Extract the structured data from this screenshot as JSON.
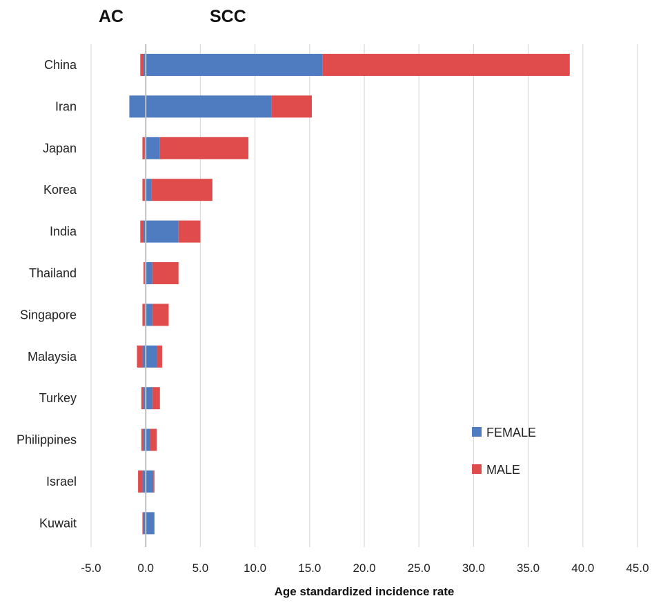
{
  "chart_data": {
    "type": "bar",
    "orientation": "horizontal",
    "stacked": true,
    "categories": [
      "China",
      "Iran",
      "Japan",
      "Korea",
      "India",
      "Thailand",
      "Singapore",
      "Malaysia",
      "Turkey",
      "Philippines",
      "Israel",
      "Kuwait"
    ],
    "top_labels": {
      "left": "AC",
      "right": "SCC"
    },
    "xlabel": "Age standardized incidence rate",
    "xlim": [
      -5,
      45
    ],
    "xticks": [
      "-5.0",
      "0.0",
      "5.0",
      "10.0",
      "15.0",
      "20.0",
      "25.0",
      "30.0",
      "35.0",
      "40.0",
      "45.0"
    ],
    "grid": "vertical",
    "legend_position": "right",
    "series": [
      {
        "name": "FEMALE",
        "color": "#4f7cc0",
        "scc": [
          16.2,
          11.5,
          1.3,
          0.5,
          3.0,
          0.6,
          0.6,
          1.0,
          0.6,
          0.4,
          0.7,
          0.8
        ],
        "ac": [
          0.2,
          1.5,
          0.1,
          0.1,
          0.2,
          0.1,
          0.1,
          0.3,
          0.2,
          0.2,
          0.3,
          0.2
        ]
      },
      {
        "name": "MALE",
        "color": "#e04b4b",
        "scc": [
          22.6,
          3.7,
          8.1,
          5.6,
          2.0,
          2.4,
          1.5,
          0.5,
          0.7,
          0.6,
          0.1,
          0.0
        ],
        "ac": [
          0.3,
          0.0,
          0.2,
          0.2,
          0.3,
          0.1,
          0.2,
          0.5,
          0.2,
          0.2,
          0.4,
          0.1
        ]
      }
    ]
  }
}
